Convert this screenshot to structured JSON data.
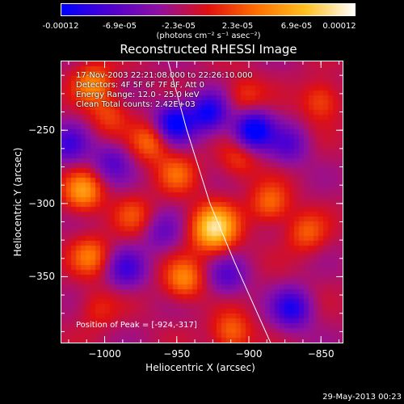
{
  "colorbar": {
    "ticks": [
      "-0.00012",
      "-6.9e-05",
      "-2.3e-05",
      "2.3e-05",
      "6.9e-05",
      "0.00012"
    ],
    "unit": "(photons cm⁻² s⁻¹ asec⁻²)",
    "stops": [
      "#0000ff",
      "#5000d0",
      "#9010a0",
      "#e01010",
      "#ff7000",
      "#ffc020",
      "#ffffff"
    ]
  },
  "plot": {
    "title": "Reconstructed RHESSI Image",
    "info_lines": [
      "17-Nov-2003 22:21:08.000 to 22:26:10.000",
      "Detectors: 4F 5F 6F 7F 8F, Att 0",
      "Energy Range: 12.0 - 25.0 keV",
      "Clean     Total counts: 2.42E+03"
    ],
    "peak_text": "Position of Peak = [-924,-317]",
    "timestamp": "29-May-2013 00:23"
  },
  "chart_data": {
    "type": "heatmap",
    "title": "Reconstructed RHESSI Image",
    "xlabel": "Heliocentric X (arcsec)",
    "ylabel": "Heliocentric Y (arcsec)",
    "xlim": [
      -1030,
      -835
    ],
    "ylim": [
      -395,
      -203
    ],
    "xticks": [
      -1000,
      -950,
      -900,
      -850
    ],
    "xtick_labels": [
      "−1000",
      "−950",
      "−900",
      "−850"
    ],
    "yticks": [
      -250,
      -300,
      -350
    ],
    "ytick_labels": [
      "−250",
      "−300",
      "−350"
    ],
    "value_range": [
      -0.00012,
      0.00012
    ],
    "peak": [
      -924,
      -317
    ],
    "limb_curve": [
      [
        -956,
        -203
      ],
      [
        -943,
        -250
      ],
      [
        -927,
        -300
      ],
      [
        -910,
        -340
      ],
      [
        -885,
        -395
      ]
    ],
    "sources": [
      {
        "x": -924,
        "y": -317,
        "value": 0.00012
      },
      {
        "x": -1008,
        "y": -218,
        "value": 7e-05
      },
      {
        "x": -997,
        "y": -240,
        "value": 4e-05
      },
      {
        "x": -968,
        "y": -258,
        "value": 6e-05
      },
      {
        "x": -950,
        "y": -280,
        "value": 5e-05
      },
      {
        "x": -1015,
        "y": -292,
        "value": 8e-05
      },
      {
        "x": -980,
        "y": -308,
        "value": 4e-05
      },
      {
        "x": -1010,
        "y": -336,
        "value": 6e-05
      },
      {
        "x": -945,
        "y": -352,
        "value": 7e-05
      },
      {
        "x": -907,
        "y": -270,
        "value": 4e-05
      },
      {
        "x": -885,
        "y": -300,
        "value": 6e-05
      },
      {
        "x": -903,
        "y": -227,
        "value": 4e-05
      },
      {
        "x": -850,
        "y": -230,
        "value": 5e-05
      },
      {
        "x": -860,
        "y": -320,
        "value": 5e-05
      },
      {
        "x": -912,
        "y": -388,
        "value": 6e-05
      },
      {
        "x": -1005,
        "y": -372,
        "value": 3e-05
      },
      {
        "x": -952,
        "y": -245,
        "value": -0.0001
      },
      {
        "x": -928,
        "y": -238,
        "value": -9e-05
      },
      {
        "x": -897,
        "y": -250,
        "value": -0.00011
      },
      {
        "x": -1025,
        "y": -260,
        "value": -6e-05
      },
      {
        "x": -872,
        "y": -260,
        "value": -5e-05
      },
      {
        "x": -995,
        "y": -272,
        "value": -5e-05
      },
      {
        "x": -870,
        "y": -372,
        "value": -8e-05
      },
      {
        "x": -985,
        "y": -345,
        "value": -6e-05
      },
      {
        "x": -960,
        "y": -320,
        "value": -4e-05
      },
      {
        "x": -915,
        "y": -350,
        "value": -5e-05
      }
    ]
  }
}
